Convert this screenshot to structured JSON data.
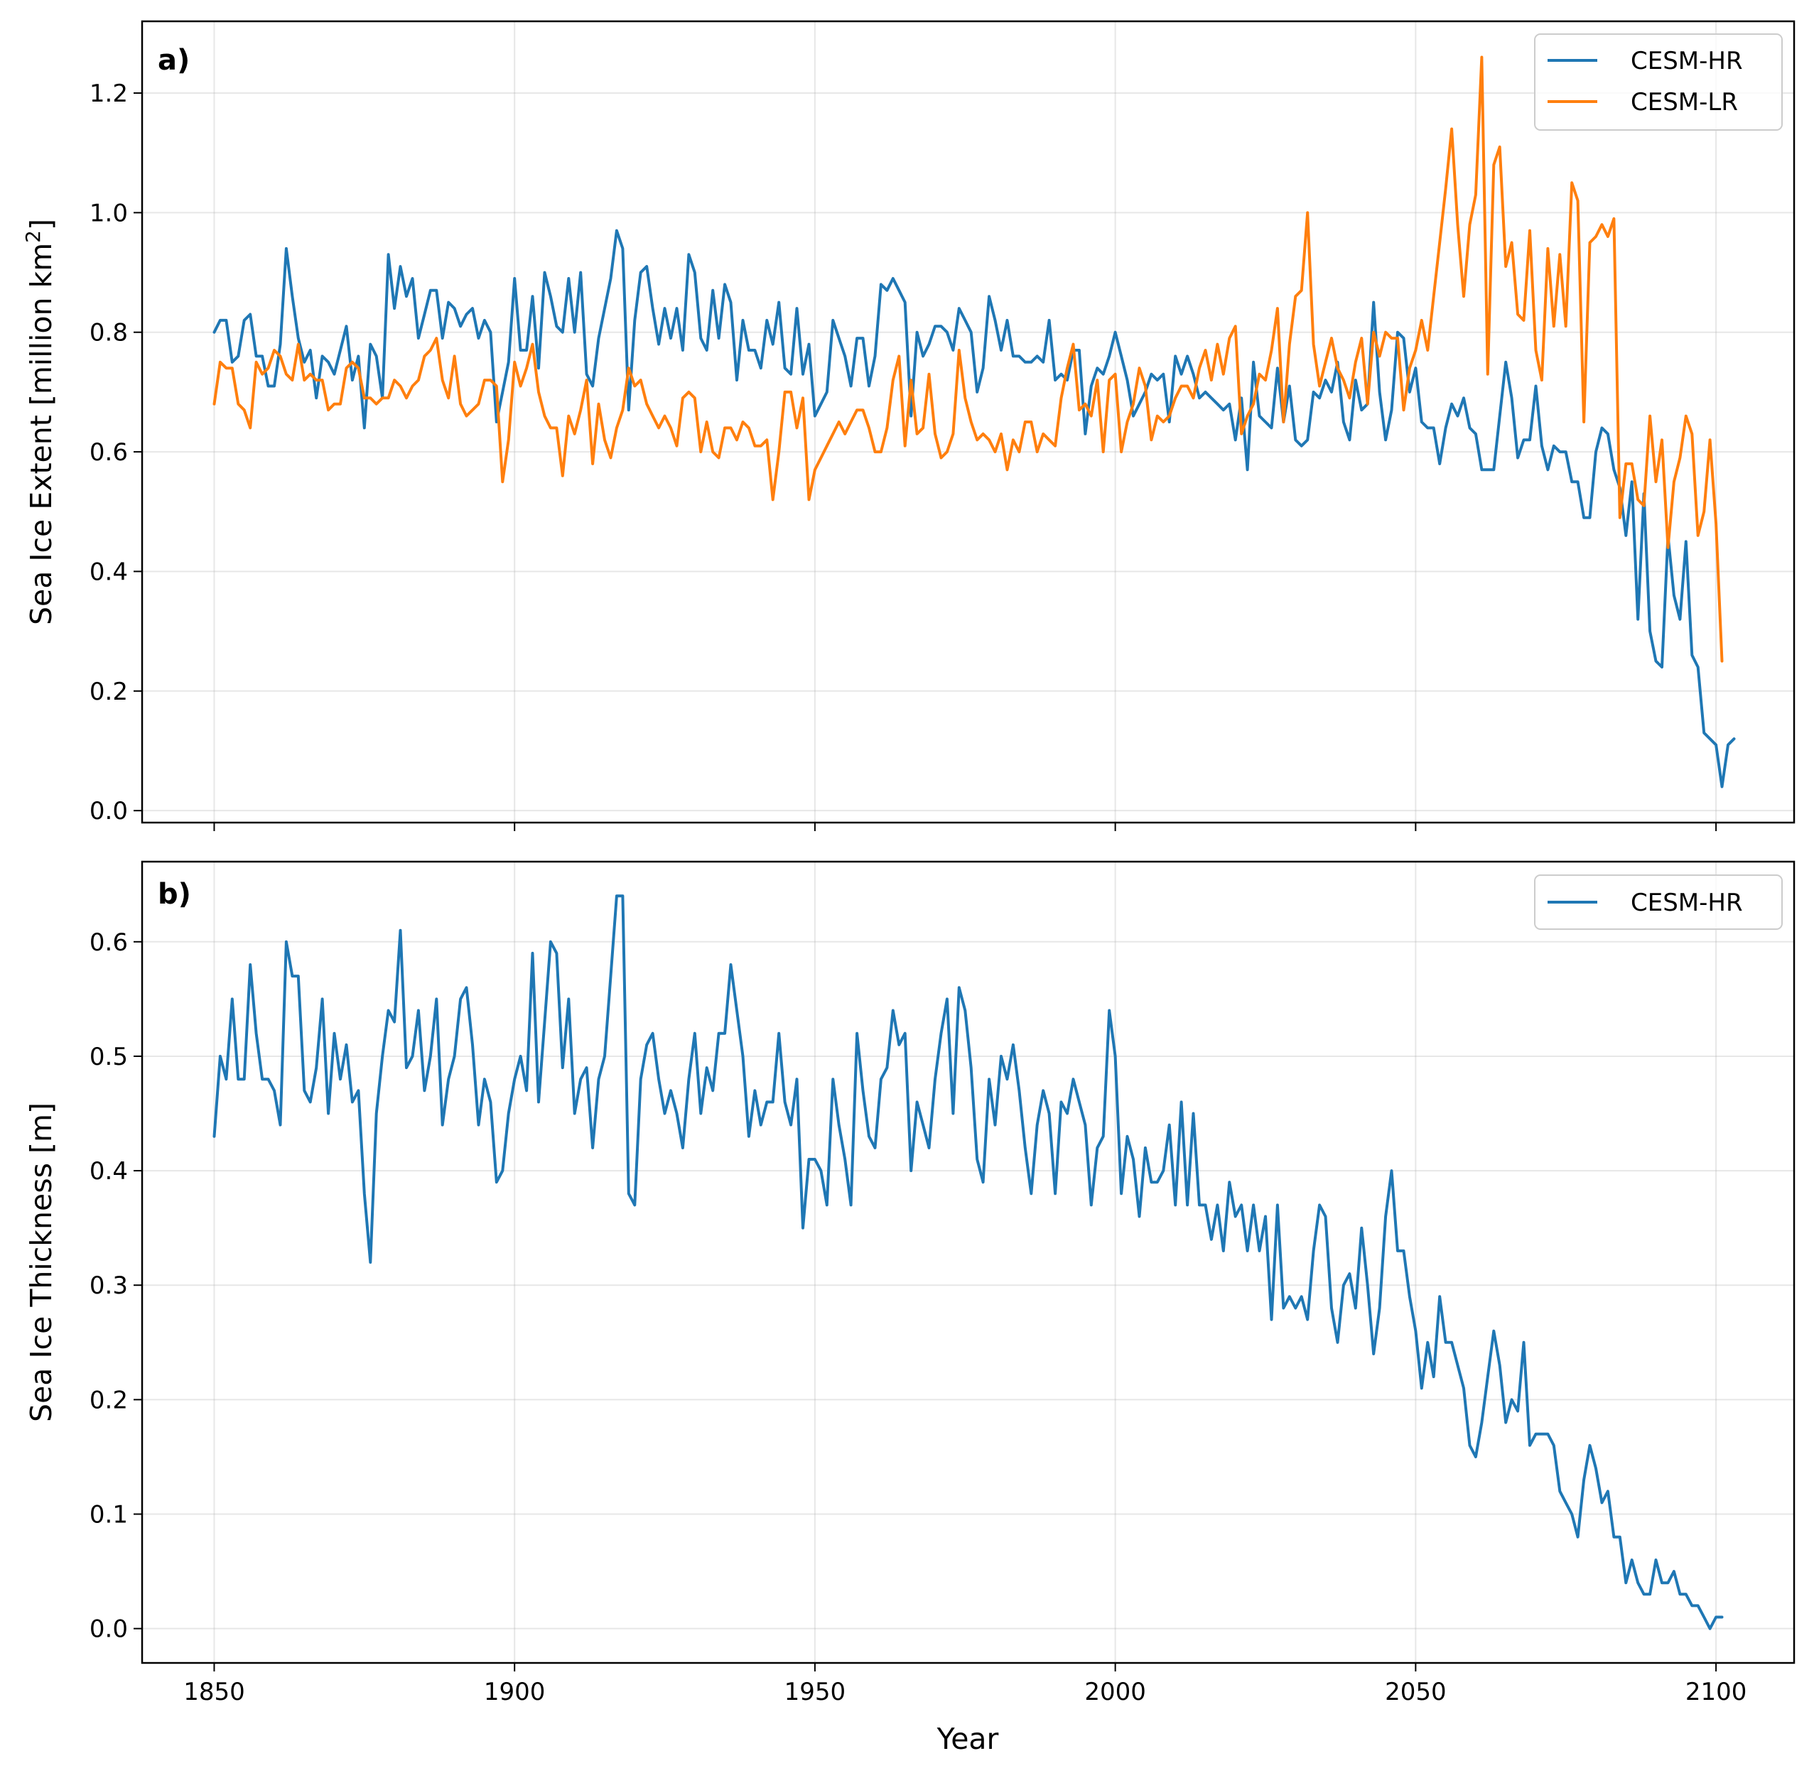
{
  "chart_data": [
    {
      "type": "line",
      "panel_label": "a)",
      "ylabel": "Sea Ice Extent [million km",
      "ylabel_sup": "2",
      "ylabel_end": "]",
      "xlabel": "",
      "xlim": [
        1838,
        2113
      ],
      "ylim": [
        -0.02,
        1.32
      ],
      "xticks": [
        1850,
        1900,
        1950,
        2000,
        2050,
        2100
      ],
      "xtick_labels_visible": false,
      "yticks": [
        0.0,
        0.2,
        0.4,
        0.6,
        0.8,
        1.0,
        1.2
      ],
      "ytick_labels": [
        "0.0",
        "0.2",
        "0.4",
        "0.6",
        "0.8",
        "1.0",
        "1.2"
      ],
      "grid": true,
      "legend": {
        "placement": "top-right",
        "entries": [
          "CESM-HR",
          "CESM-LR"
        ]
      },
      "x_start": 1850,
      "x_step": 1,
      "series": [
        {
          "name": "CESM-HR",
          "color": "#1f77b4",
          "values": [
            0.8,
            0.82,
            0.82,
            0.75,
            0.76,
            0.82,
            0.83,
            0.76,
            0.76,
            0.71,
            0.71,
            0.78,
            0.94,
            0.86,
            0.79,
            0.75,
            0.77,
            0.69,
            0.76,
            0.75,
            0.73,
            0.77,
            0.81,
            0.72,
            0.76,
            0.64,
            0.78,
            0.76,
            0.69,
            0.93,
            0.84,
            0.91,
            0.86,
            0.89,
            0.79,
            0.83,
            0.87,
            0.87,
            0.79,
            0.85,
            0.84,
            0.81,
            0.83,
            0.84,
            0.79,
            0.82,
            0.8,
            0.65,
            0.7,
            0.75,
            0.89,
            0.77,
            0.77,
            0.86,
            0.74,
            0.9,
            0.86,
            0.81,
            0.8,
            0.89,
            0.8,
            0.9,
            0.73,
            0.71,
            0.79,
            0.84,
            0.89,
            0.97,
            0.94,
            0.67,
            0.82,
            0.9,
            0.91,
            0.84,
            0.78,
            0.84,
            0.79,
            0.84,
            0.77,
            0.93,
            0.9,
            0.79,
            0.77,
            0.87,
            0.79,
            0.88,
            0.85,
            0.72,
            0.82,
            0.77,
            0.77,
            0.74,
            0.82,
            0.78,
            0.85,
            0.74,
            0.73,
            0.84,
            0.73,
            0.78,
            0.66,
            0.68,
            0.7,
            0.82,
            0.79,
            0.76,
            0.71,
            0.79,
            0.79,
            0.71,
            0.76,
            0.88,
            0.87,
            0.89,
            0.87,
            0.85,
            0.66,
            0.8,
            0.76,
            0.78,
            0.81,
            0.81,
            0.8,
            0.77,
            0.84,
            0.82,
            0.8,
            0.7,
            0.74,
            0.86,
            0.82,
            0.77,
            0.82,
            0.76,
            0.76,
            0.75,
            0.75,
            0.76,
            0.75,
            0.82,
            0.72,
            0.73,
            0.72,
            0.77,
            0.77,
            0.63,
            0.71,
            0.74,
            0.73,
            0.76,
            0.8,
            0.76,
            0.72,
            0.66,
            0.68,
            0.7,
            0.73,
            0.72,
            0.73,
            0.65,
            0.76,
            0.73,
            0.76,
            0.73,
            0.69,
            0.7,
            0.69,
            0.68,
            0.67,
            0.68,
            0.62,
            0.69,
            0.57,
            0.75,
            0.66,
            0.65,
            0.64,
            0.74,
            0.65,
            0.71,
            0.62,
            0.61,
            0.62,
            0.7,
            0.69,
            0.72,
            0.7,
            0.75,
            0.65,
            0.62,
            0.72,
            0.67,
            0.68,
            0.85,
            0.7,
            0.62,
            0.67,
            0.8,
            0.79,
            0.7,
            0.74,
            0.65,
            0.64,
            0.64,
            0.58,
            0.64,
            0.68,
            0.66,
            0.69,
            0.64,
            0.63,
            0.57,
            0.57,
            0.57,
            0.66,
            0.75,
            0.69,
            0.59,
            0.62,
            0.62,
            0.71,
            0.61,
            0.57,
            0.61,
            0.6,
            0.6,
            0.55,
            0.55,
            0.49,
            0.49,
            0.6,
            0.64,
            0.63,
            0.57,
            0.54,
            0.46,
            0.55,
            0.32,
            0.53,
            0.3,
            0.25,
            0.24,
            0.46,
            0.36,
            0.32,
            0.45,
            0.26,
            0.24,
            0.13,
            0.12,
            0.11,
            0.04,
            0.11,
            0.12
          ]
        },
        {
          "name": "CESM-LR",
          "color": "#ff7f0e",
          "values": [
            0.68,
            0.75,
            0.74,
            0.74,
            0.68,
            0.67,
            0.64,
            0.75,
            0.73,
            0.74,
            0.77,
            0.76,
            0.73,
            0.72,
            0.78,
            0.72,
            0.73,
            0.72,
            0.72,
            0.67,
            0.68,
            0.68,
            0.74,
            0.75,
            0.74,
            0.69,
            0.69,
            0.68,
            0.69,
            0.69,
            0.72,
            0.71,
            0.69,
            0.71,
            0.72,
            0.76,
            0.77,
            0.79,
            0.72,
            0.69,
            0.76,
            0.68,
            0.66,
            0.67,
            0.68,
            0.72,
            0.72,
            0.71,
            0.55,
            0.62,
            0.75,
            0.71,
            0.74,
            0.78,
            0.7,
            0.66,
            0.64,
            0.64,
            0.56,
            0.66,
            0.63,
            0.67,
            0.72,
            0.58,
            0.68,
            0.62,
            0.59,
            0.64,
            0.67,
            0.74,
            0.71,
            0.72,
            0.68,
            0.66,
            0.64,
            0.66,
            0.64,
            0.61,
            0.69,
            0.7,
            0.69,
            0.6,
            0.65,
            0.6,
            0.59,
            0.64,
            0.64,
            0.62,
            0.65,
            0.64,
            0.61,
            0.61,
            0.62,
            0.52,
            0.6,
            0.7,
            0.7,
            0.64,
            0.69,
            0.52,
            0.57,
            0.59,
            0.61,
            0.63,
            0.65,
            0.63,
            0.65,
            0.67,
            0.67,
            0.64,
            0.6,
            0.6,
            0.64,
            0.72,
            0.76,
            0.61,
            0.72,
            0.63,
            0.64,
            0.73,
            0.63,
            0.59,
            0.6,
            0.63,
            0.77,
            0.69,
            0.65,
            0.62,
            0.63,
            0.62,
            0.6,
            0.63,
            0.57,
            0.62,
            0.6,
            0.65,
            0.65,
            0.6,
            0.63,
            0.62,
            0.61,
            0.69,
            0.74,
            0.78,
            0.67,
            0.68,
            0.66,
            0.72,
            0.6,
            0.72,
            0.73,
            0.6,
            0.65,
            0.68,
            0.74,
            0.71,
            0.62,
            0.66,
            0.65,
            0.66,
            0.69,
            0.71,
            0.71,
            0.69,
            0.74,
            0.77,
            0.72,
            0.78,
            0.73,
            0.79,
            0.81,
            0.63,
            0.66,
            0.68,
            0.73,
            0.72,
            0.77,
            0.84,
            0.65,
            0.78,
            0.86,
            0.87,
            1.0,
            0.78,
            0.71,
            0.75,
            0.79,
            0.74,
            0.72,
            0.69,
            0.75,
            0.79,
            0.68,
            0.8,
            0.76,
            0.8,
            0.79,
            0.79,
            0.67,
            0.74,
            0.77,
            0.82,
            0.77,
            0.86,
            0.95,
            1.04,
            1.14,
            0.98,
            0.86,
            0.98,
            1.03,
            1.26,
            0.73,
            1.08,
            1.11,
            0.91,
            0.95,
            0.83,
            0.82,
            0.97,
            0.77,
            0.72,
            0.94,
            0.81,
            0.93,
            0.81,
            1.05,
            1.02,
            0.65,
            0.95,
            0.96,
            0.98,
            0.96,
            0.99,
            0.49,
            0.58,
            0.58,
            0.52,
            0.51,
            0.66,
            0.55,
            0.62,
            0.44,
            0.55,
            0.59,
            0.66,
            0.63,
            0.46,
            0.5,
            0.62,
            0.48,
            0.25
          ]
        }
      ]
    },
    {
      "type": "line",
      "panel_label": "b)",
      "ylabel": "Sea Ice Thickness [m]",
      "xlabel": "Year",
      "xlim": [
        1838,
        2113
      ],
      "ylim": [
        -0.03,
        0.67
      ],
      "xticks": [
        1850,
        1900,
        1950,
        2000,
        2050,
        2100
      ],
      "xtick_labels": [
        "1850",
        "1900",
        "1950",
        "2000",
        "2050",
        "2100"
      ],
      "yticks": [
        0.0,
        0.1,
        0.2,
        0.3,
        0.4,
        0.5,
        0.6
      ],
      "ytick_labels": [
        "0.0",
        "0.1",
        "0.2",
        "0.3",
        "0.4",
        "0.5",
        "0.6"
      ],
      "grid": true,
      "legend": {
        "placement": "top-right",
        "entries": [
          "CESM-HR"
        ]
      },
      "x_start": 1850,
      "x_step": 1,
      "series": [
        {
          "name": "CESM-HR",
          "color": "#1f77b4",
          "values": [
            0.43,
            0.5,
            0.48,
            0.55,
            0.48,
            0.48,
            0.58,
            0.52,
            0.48,
            0.48,
            0.47,
            0.44,
            0.6,
            0.57,
            0.57,
            0.47,
            0.46,
            0.49,
            0.55,
            0.45,
            0.52,
            0.48,
            0.51,
            0.46,
            0.47,
            0.38,
            0.32,
            0.45,
            0.5,
            0.54,
            0.53,
            0.61,
            0.49,
            0.5,
            0.54,
            0.47,
            0.5,
            0.55,
            0.44,
            0.48,
            0.5,
            0.55,
            0.56,
            0.51,
            0.44,
            0.48,
            0.46,
            0.39,
            0.4,
            0.45,
            0.48,
            0.5,
            0.47,
            0.59,
            0.46,
            0.53,
            0.6,
            0.59,
            0.49,
            0.55,
            0.45,
            0.48,
            0.49,
            0.42,
            0.48,
            0.5,
            0.57,
            0.64,
            0.64,
            0.38,
            0.37,
            0.48,
            0.51,
            0.52,
            0.48,
            0.45,
            0.47,
            0.45,
            0.42,
            0.48,
            0.52,
            0.45,
            0.49,
            0.47,
            0.52,
            0.52,
            0.58,
            0.54,
            0.5,
            0.43,
            0.47,
            0.44,
            0.46,
            0.46,
            0.52,
            0.46,
            0.44,
            0.48,
            0.35,
            0.41,
            0.41,
            0.4,
            0.37,
            0.48,
            0.44,
            0.41,
            0.37,
            0.52,
            0.47,
            0.43,
            0.42,
            0.48,
            0.49,
            0.54,
            0.51,
            0.52,
            0.4,
            0.46,
            0.44,
            0.42,
            0.48,
            0.52,
            0.55,
            0.45,
            0.56,
            0.54,
            0.49,
            0.41,
            0.39,
            0.48,
            0.44,
            0.5,
            0.48,
            0.51,
            0.47,
            0.42,
            0.38,
            0.44,
            0.47,
            0.45,
            0.38,
            0.46,
            0.45,
            0.48,
            0.46,
            0.44,
            0.37,
            0.42,
            0.43,
            0.54,
            0.5,
            0.38,
            0.43,
            0.41,
            0.36,
            0.42,
            0.39,
            0.39,
            0.4,
            0.44,
            0.37,
            0.46,
            0.37,
            0.45,
            0.37,
            0.37,
            0.34,
            0.37,
            0.33,
            0.39,
            0.36,
            0.37,
            0.33,
            0.37,
            0.33,
            0.36,
            0.27,
            0.37,
            0.28,
            0.29,
            0.28,
            0.29,
            0.27,
            0.33,
            0.37,
            0.36,
            0.28,
            0.25,
            0.3,
            0.31,
            0.28,
            0.35,
            0.3,
            0.24,
            0.28,
            0.36,
            0.4,
            0.33,
            0.33,
            0.29,
            0.26,
            0.21,
            0.25,
            0.22,
            0.29,
            0.25,
            0.25,
            0.23,
            0.21,
            0.16,
            0.15,
            0.18,
            0.22,
            0.26,
            0.23,
            0.18,
            0.2,
            0.19,
            0.25,
            0.16,
            0.17,
            0.17,
            0.17,
            0.16,
            0.12,
            0.11,
            0.1,
            0.08,
            0.13,
            0.16,
            0.14,
            0.11,
            0.12,
            0.08,
            0.08,
            0.04,
            0.06,
            0.04,
            0.03,
            0.03,
            0.06,
            0.04,
            0.04,
            0.05,
            0.03,
            0.03,
            0.02,
            0.02,
            0.01,
            0.0,
            0.01,
            0.01
          ]
        }
      ]
    }
  ]
}
